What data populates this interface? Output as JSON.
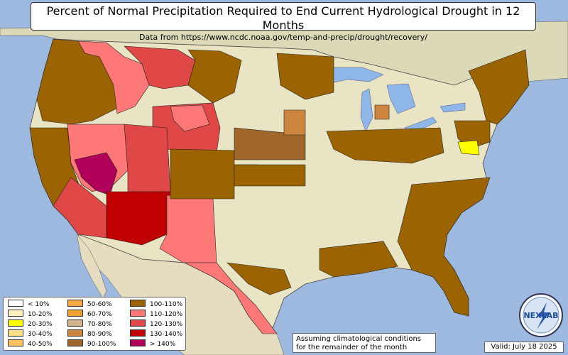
{
  "title": "Percent of Normal Precipitation Required to End Current Hydrological Drought in 12 Months",
  "subtitle": "Data from https://www.ncdc.noaa.gov/temp-and-precip/drought/recovery/",
  "legend": [
    {
      "label": "< 10%",
      "color": "#ffffff"
    },
    {
      "label": "10-20%",
      "color": "#fff0c0"
    },
    {
      "label": "20-30%",
      "color": "#ffff00"
    },
    {
      "label": "30-40%",
      "color": "#ffe08a"
    },
    {
      "label": "40-50%",
      "color": "#ffc060"
    },
    {
      "label": "50-60%",
      "color": "#f5a742"
    },
    {
      "label": "60-70%",
      "color": "#f0a030"
    },
    {
      "label": "70-80%",
      "color": "#d2b48c"
    },
    {
      "label": "80-90%",
      "color": "#cd853f"
    },
    {
      "label": "90-100%",
      "color": "#a0672a"
    },
    {
      "label": "100-110%",
      "color": "#9b6400"
    },
    {
      "label": "110-120%",
      "color": "#ff7878"
    },
    {
      "label": "120-130%",
      "color": "#e04848"
    },
    {
      "label": "130-140%",
      "color": "#c00000"
    },
    {
      "label": "> 140%",
      "color": "#b0005a"
    }
  ],
  "note": {
    "line1": "Assuming climatological conditions",
    "line2": "for the remainder of the month"
  },
  "valid": "Valid: July 18 2025",
  "logo_text": "NEXLAB",
  "colors": {
    "ocean": "#9db9e0",
    "land": "#e9e4c4",
    "canada": "#dcd9b8",
    "mexico": "#e6dcc0",
    "lake": "#8fb6e8"
  }
}
